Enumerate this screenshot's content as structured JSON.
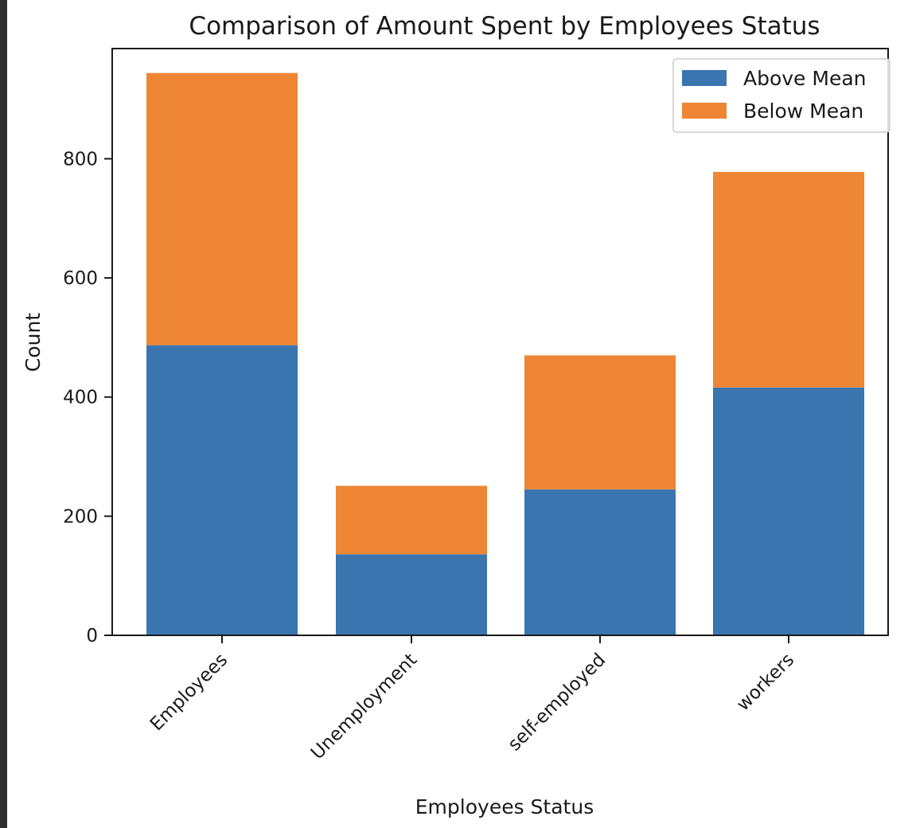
{
  "chart_data": {
    "type": "bar",
    "stacked": true,
    "title": "Comparison of Amount Spent by Employees Status",
    "xlabel": "Employees Status",
    "ylabel": "Count",
    "categories": [
      "Employees",
      "Unemployment",
      "self-employed",
      "workers"
    ],
    "series": [
      {
        "name": "Above Mean",
        "color": "#3a75b0",
        "values": [
          487,
          136,
          245,
          416
        ]
      },
      {
        "name": "Below Mean",
        "color": "#ee8636",
        "values": [
          457,
          115,
          225,
          362
        ]
      }
    ],
    "ylim": [
      0,
      985
    ],
    "yticks": [
      0,
      200,
      400,
      600,
      800
    ],
    "grid": false,
    "legend": "top-right"
  }
}
